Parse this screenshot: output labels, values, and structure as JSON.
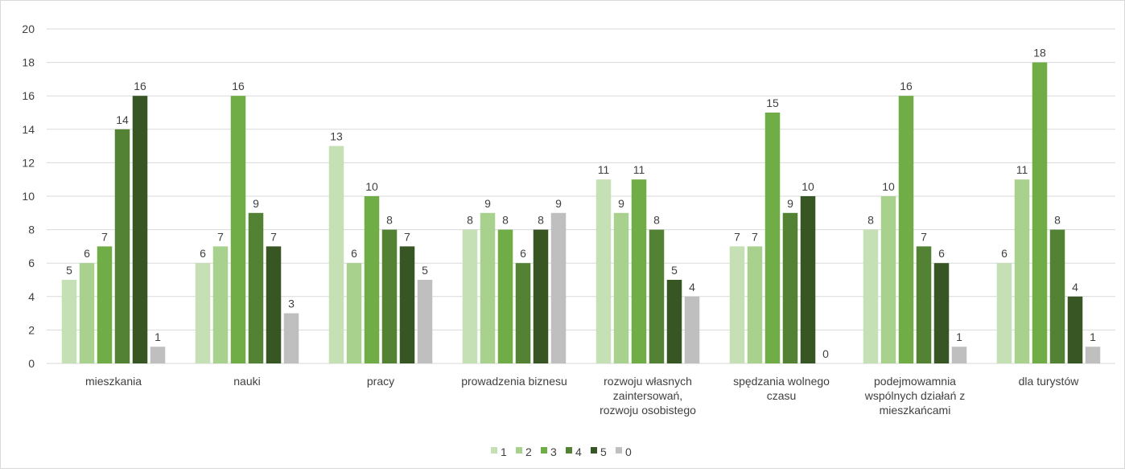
{
  "chart_data": {
    "type": "bar",
    "categories": [
      [
        "mieszkania"
      ],
      [
        "nauki"
      ],
      [
        "pracy"
      ],
      [
        "prowadzenia biznesu"
      ],
      [
        "rozwoju własnych",
        "zaintersowań,",
        "rozwoju osobistego"
      ],
      [
        "spędzania wolnego",
        "czasu"
      ],
      [
        "podejmowamnia",
        "wspólnych działań z",
        "mieszkańcami"
      ],
      [
        "dla turystów"
      ]
    ],
    "series": [
      {
        "name": "1",
        "color": "#c5e0b4",
        "values": [
          5,
          6,
          13,
          8,
          11,
          7,
          8,
          6
        ]
      },
      {
        "name": "2",
        "color": "#a9d18e",
        "values": [
          6,
          7,
          6,
          9,
          9,
          7,
          10,
          11
        ]
      },
      {
        "name": "3",
        "color": "#70ad47",
        "values": [
          7,
          16,
          10,
          8,
          11,
          15,
          16,
          18
        ]
      },
      {
        "name": "4",
        "color": "#548235",
        "values": [
          14,
          9,
          8,
          6,
          8,
          9,
          7,
          8
        ]
      },
      {
        "name": "5",
        "color": "#375623",
        "values": [
          16,
          7,
          7,
          8,
          5,
          10,
          6,
          4
        ]
      },
      {
        "name": "0",
        "color": "#bfbfbf",
        "values": [
          1,
          3,
          5,
          9,
          4,
          0,
          1,
          1
        ]
      }
    ],
    "ylim": [
      0,
      20
    ],
    "yticks": [
      0,
      2,
      4,
      6,
      8,
      10,
      12,
      14,
      16,
      18,
      20
    ],
    "grid": true,
    "legend_position": "bottom"
  }
}
